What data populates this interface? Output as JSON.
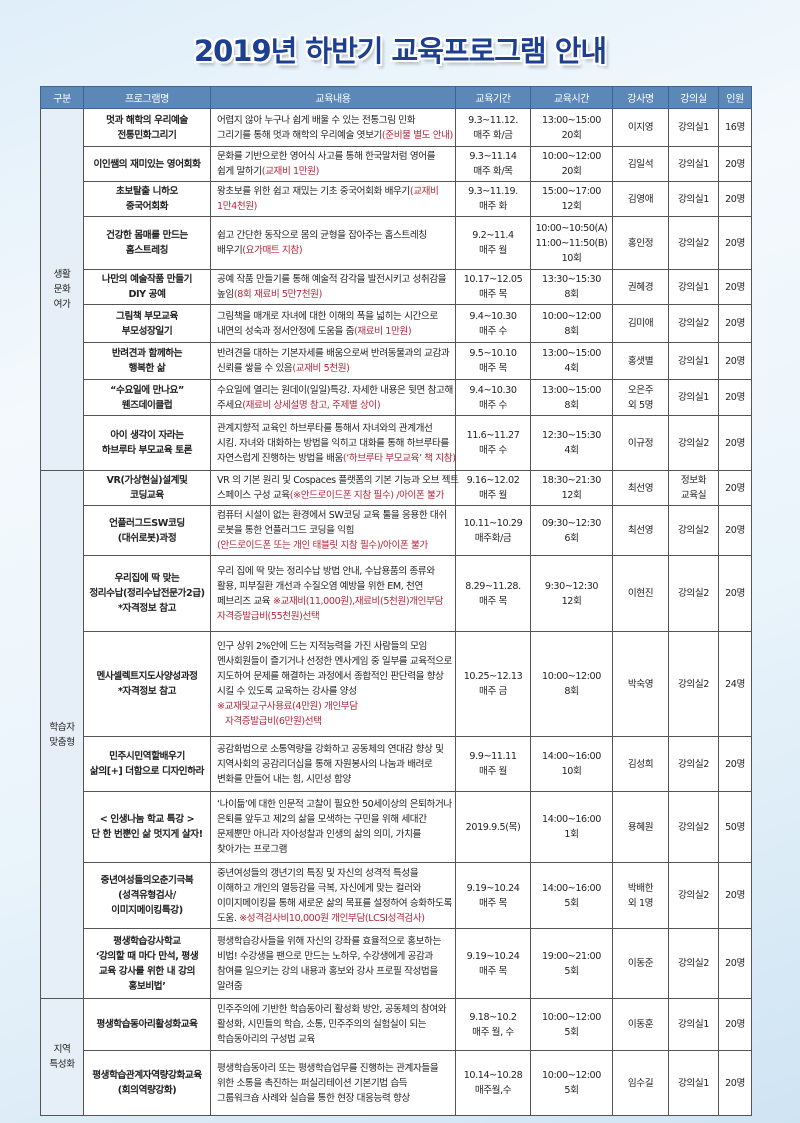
{
  "title": "2019년 하반기 교육프로그램 안내",
  "colors": {
    "title": "#1d3f8f",
    "header_bg": "#5c88b8",
    "note_red": "#b1283a"
  },
  "headers": [
    "구분",
    "프로그램명",
    "교육내용",
    "교육기간",
    "교육시간",
    "강사명",
    "강의실",
    "인원"
  ],
  "groups": [
    {
      "category": [
        "생활",
        "문화",
        "여가"
      ],
      "rows": [
        {
          "name": [
            "멋과 해학의 우리예술",
            "전통민화그리기"
          ],
          "content": [
            [
              "어렵지 않아 누구나 쉽게 배울 수 있는 전통그림 민화",
              ""
            ],
            [
              "그리기를 통해 멋과 해학의 우리예술 엿보기",
              "(준비물 별도 안내)"
            ]
          ],
          "period": [
            "9.3~11.12.",
            "매주 화/금"
          ],
          "time": [
            "13:00~15:00",
            "20회"
          ],
          "instructor": [
            "이지영"
          ],
          "room": [
            "강의실1"
          ],
          "capacity": "16명"
        },
        {
          "name": [
            "이인쌤의 재미있는 영어회화"
          ],
          "content": [
            [
              "문화를 기반으로한 영어식 사고를 통해 한국말처럼 영어를",
              ""
            ],
            [
              "쉽게 말하기",
              "(교재비 1만원)"
            ]
          ],
          "period": [
            "9.3~11.14",
            "매주 화/목"
          ],
          "time": [
            "10:00~12:00",
            "20회"
          ],
          "instructor": [
            "김일석"
          ],
          "room": [
            "강의실1"
          ],
          "capacity": "20명"
        },
        {
          "name": [
            "초보탈출 니하오",
            "중국어회화"
          ],
          "content": [
            [
              "왕초보를 위한 쉽고 재밌는 기초 중국어회화 배우기",
              "(교재비"
            ],
            [
              "",
              "1만4천원)"
            ]
          ],
          "period": [
            "9.3~11.19.",
            "매주 화"
          ],
          "time": [
            "15:00~17:00",
            "12회"
          ],
          "instructor": [
            "김영애"
          ],
          "room": [
            "강의실1"
          ],
          "capacity": "20명"
        },
        {
          "name": [
            "건강한 몸매를 만드는",
            "홈스트레칭"
          ],
          "content": [
            [
              "쉽고 간단한 동작으로 몸의 균형을 잡아주는 홈스트레칭",
              ""
            ],
            [
              "배우기",
              "(요가매트 지참)"
            ]
          ],
          "period": [
            "9.2~11.4",
            "매주 월"
          ],
          "time": [
            "10:00~10:50(A)",
            "11:00~11:50(B)",
            "10회"
          ],
          "instructor": [
            "홍인정"
          ],
          "room": [
            "강의실2"
          ],
          "capacity": "20명"
        },
        {
          "name": [
            "나만의 예술작품 만들기",
            "DIY 공예"
          ],
          "content": [
            [
              "공예 작품 만들기를 통해 예술적 감각을 발전시키고 성취감을",
              ""
            ],
            [
              "높임",
              "(8회 재료비 5만7천원)"
            ]
          ],
          "period": [
            "10.17~12.05",
            "매주 목"
          ],
          "time": [
            "13:30~15:30",
            "8회"
          ],
          "instructor": [
            "권혜경"
          ],
          "room": [
            "강의실1"
          ],
          "capacity": "20명"
        },
        {
          "name": [
            "그림책 부모교육",
            "부모성장일기"
          ],
          "content": [
            [
              "그림책을 매개로 자녀에 대한 이해의 폭을 넓히는 시간으로",
              ""
            ],
            [
              "내면의 성숙과 정서안정에 도움을 줌",
              "(재료비 1만원)"
            ]
          ],
          "period": [
            "9.4~10.30",
            "매주 수"
          ],
          "time": [
            "10:00~12:00",
            "8회"
          ],
          "instructor": [
            "김미애"
          ],
          "room": [
            "강의실2"
          ],
          "capacity": "20명"
        },
        {
          "name": [
            "반려견과 함께하는",
            "행복한 삶"
          ],
          "content": [
            [
              "반려견을 대하는 기본자세를 배움으로써 반려동물과의 교감과",
              ""
            ],
            [
              "신뢰를 쌓을 수 있음",
              "(교재비 5천원)"
            ]
          ],
          "period": [
            "9.5~10.10",
            "매주 목"
          ],
          "time": [
            "13:00~15:00",
            "4회"
          ],
          "instructor": [
            "홍샛별"
          ],
          "room": [
            "강의실1"
          ],
          "capacity": "20명"
        },
        {
          "name": [
            "“수요일에 만나요”",
            "웬즈데이클럽"
          ],
          "content": [
            [
              "수요일에 열리는 원데이(일일)특강. 자세한 내용은 뒷면 참고해",
              ""
            ],
            [
              "주세요",
              "(재료비 상세설명 참고, 주제별 상이)"
            ]
          ],
          "period": [
            "9.4~10.30",
            "매주 수"
          ],
          "time": [
            "13:00~15:00",
            "8회"
          ],
          "instructor": [
            "오은주",
            "외 5명"
          ],
          "room": [
            "강의실1"
          ],
          "capacity": "20명"
        },
        {
          "name": [
            "아이  생각이 자라는",
            "하브루타 부모교육 토론"
          ],
          "content": [
            [
              "관계지향적 교육인 하브루타를 통해서 자녀와의 관계개선",
              ""
            ],
            [
              "시킴. 자녀와 대화하는 방법을 익히고 대화를 통해 하브루타를",
              ""
            ],
            [
              "자연스럽게 진행하는 방법을 배움",
              "(‘하브루타 부모교육’ 책 지참)"
            ]
          ],
          "period": [
            "11.6~11.27",
            "매주 수"
          ],
          "time": [
            "12:30~15:30",
            "4회"
          ],
          "instructor": [
            "이규정"
          ],
          "room": [
            "강의실2"
          ],
          "capacity": "20명"
        }
      ]
    },
    {
      "category": [
        "학습자",
        "맞춤형"
      ],
      "rows": [
        {
          "name": [
            "VR(가상현실)설계및",
            "코딩교육"
          ],
          "content": [
            [
              "VR 의 기본 원리 및 Cospaces 플랫폼의 기본 기능과 오브 젝트",
              ""
            ],
            [
              "스페이스 구성 교육",
              "(※안드로이드폰 지참 필수) /아이폰 불가"
            ]
          ],
          "period": [
            "9.16~12.02",
            "매주 월"
          ],
          "time": [
            "18:30~21:30",
            "12회"
          ],
          "instructor": [
            "최선영"
          ],
          "room": [
            "정보화",
            "교육실"
          ],
          "capacity": "20명"
        },
        {
          "name": [
            "언플러그드SW코딩",
            "(대쉬로봇)과정"
          ],
          "content": [
            [
              "컴퓨터 시설이 없는 환경에서 SW코딩 교육 툴을 응용한 대쉬",
              ""
            ],
            [
              "로봇을 통한 언플러그드 코딩을 익힘",
              ""
            ],
            [
              "",
              "(안드로이드폰 또는 개인 태블릿 지참 필수)/아이폰 불가"
            ]
          ],
          "period": [
            "10.11~10.29",
            "매주화/금"
          ],
          "time": [
            "09:30~12:30",
            "6회"
          ],
          "instructor": [
            "최선영"
          ],
          "room": [
            "강의실2"
          ],
          "capacity": "20명"
        },
        {
          "name": [
            "우리집에 딱 맞는",
            "정리수납(정리수납전문가2급)",
            "*자격정보 참고"
          ],
          "content": [
            [
              "우리 집에 딱 맞는 정리수납 방법 안내, 수납용품의 종류와",
              ""
            ],
            [
              "활용, 피부질환 개선과 수질오염 예방을 위한 EM, 천연",
              ""
            ],
            [
              "페브리즈 교육 ",
              "※교재비(11,000원),재료비(5천원)개인부담"
            ],
            [
              "",
              "자격증발급비(55천원)선택"
            ]
          ],
          "period": [
            "8.29~11.28.",
            "매주 목"
          ],
          "time": [
            "9:30~12:30",
            "12회"
          ],
          "instructor": [
            "이현진"
          ],
          "room": [
            "강의실2"
          ],
          "capacity": "20명"
        },
        {
          "name": [
            "멘사셀렉트지도사양성과정",
            "*자격정보 참고"
          ],
          "content": [
            [
              "인구 상위 2%안에 드는 지적능력을 가진 사람들의 모임",
              ""
            ],
            [
              "멘사회원들이 즐기거나 선정한 멘사게임 중 일부를 교육적으로",
              ""
            ],
            [
              "지도하여 문제를 해결하는 과정에서 종합적인 판단력을 향상",
              ""
            ],
            [
              "시킬 수 있도록 교육하는 강사를 양성",
              ""
            ],
            [
              "",
              "※교재및교구사용료(4만원) 개인부담"
            ],
            [
              "",
              "   자격증발급비(6만원)선택"
            ]
          ],
          "period": [
            "10.25~12.13",
            "매주 금"
          ],
          "time": [
            "10:00~12:00",
            "8회"
          ],
          "instructor": [
            "박숙영"
          ],
          "room": [
            "강의실2"
          ],
          "capacity": "24명"
        },
        {
          "name": [
            "민주시민역할배우기",
            "삶의[+] 더함으로 디자인하라"
          ],
          "content": [
            [
              "공감화법으로 소통역량을 강화하고 공동체의 연대감 향상 및",
              ""
            ],
            [
              "지역사회의 공감리더십을 통해 자원봉사의 나눔과 배려로",
              ""
            ],
            [
              "변화를 만들어 내는 힘, 시민성 함양",
              ""
            ]
          ],
          "period": [
            "9.9~11.11",
            "매주 월"
          ],
          "time": [
            "14:00~16:00",
            "10회"
          ],
          "instructor": [
            "김성희"
          ],
          "room": [
            "강의실2"
          ],
          "capacity": "20명"
        },
        {
          "name": [
            "< 인생나눔 학교 특강 >",
            "단 한 번뿐인 삶 멋지게 살자!"
          ],
          "content": [
            [
              "‘나이듦’에 대한 인문적 고찰이 필요한 50세이상의 은퇴하거나",
              ""
            ],
            [
              "은퇴를 앞두고 제2의 삶을 모색하는 구민을 위해 세대간",
              ""
            ],
            [
              "문제뿐만 아니라 자아성찰과 인생의 삶의 의미, 가치를",
              ""
            ],
            [
              "찾아가는 프로그램",
              ""
            ]
          ],
          "period": [
            "2019.9.5(목)"
          ],
          "time": [
            "14:00~16:00",
            "1회"
          ],
          "instructor": [
            "용혜원"
          ],
          "room": [
            "강의실2"
          ],
          "capacity": "50명"
        },
        {
          "name": [
            "중년여성들의오춘기극복",
            "(성격유형검사/",
            "이미지메이킹특강)"
          ],
          "content": [
            [
              "중년여성들의 갱년기의 특징 및 자신의 성격적 특성을",
              ""
            ],
            [
              "이해하고 개인의 열등감을 극복, 자신에게 맞는 컬러와",
              ""
            ],
            [
              "이미지메이킹을 통해 새로운 삶의 목표를 설정하여 승화하도록",
              ""
            ],
            [
              "도움. ",
              "※성격검사비10,000원 개인부담(LCSI성격검사)"
            ]
          ],
          "period": [
            "9.19~10.24",
            "매주 목"
          ],
          "time": [
            "14:00~16:00",
            "5회"
          ],
          "instructor": [
            "박배한",
            "외 1명"
          ],
          "room": [
            "강의실2"
          ],
          "capacity": "20명"
        },
        {
          "name": [
            "평생학습강사학교",
            "‘강의할 때 마다 만석, 평생",
            "교육 강사를 위한 내 강의",
            "홍보비법’"
          ],
          "content": [
            [
              "평생학습강사들을 위해 자신의 강좌를 효율적으로 홍보하는",
              ""
            ],
            [
              "비법! 수강생을 팬으로 만드는 노하우, 수강생에게 공감과",
              ""
            ],
            [
              "참여를 일으키는 강의 내용과 홍보와 강사 프로필 작성법을",
              ""
            ],
            [
              "알려줌",
              ""
            ]
          ],
          "period": [
            "9.19~10.24",
            "매주 목"
          ],
          "time": [
            "19:00~21:00",
            "5회"
          ],
          "instructor": [
            "이동준"
          ],
          "room": [
            "강의실2"
          ],
          "capacity": "20명"
        }
      ]
    },
    {
      "category": [
        "지역",
        "특성화"
      ],
      "rows": [
        {
          "name": [
            "평생학습동아리활성화교육"
          ],
          "content": [
            [
              "민주주의에 기반한 학습동아리 활성화 방안, 공동체의 참여와",
              ""
            ],
            [
              "활성화, 시민들의 학습, 소통, 민주주의의 실험실이 되는",
              ""
            ],
            [
              "학습동아리의 구성법 교육",
              ""
            ]
          ],
          "period": [
            "9.18~10.2",
            "매주 월, 수"
          ],
          "time": [
            "10:00~12:00",
            "5회"
          ],
          "instructor": [
            "이동훈"
          ],
          "room": [
            "강의실1"
          ],
          "capacity": "20명"
        },
        {
          "name": [
            "평생학습관계자역량강화교육",
            "(회의역량강화)"
          ],
          "content": [
            [
              "평생학습동아리 또는 평생학습업무를 진행하는 관계자들을",
              ""
            ],
            [
              "위한 소통을 촉진하는 퍼실리테이션 기본기법 습득",
              ""
            ],
            [
              "그룹워크숍 사례와 실습을 통한 현장 대응능력 향상",
              ""
            ]
          ],
          "period": [
            "10.14~10.28",
            "매주월,수"
          ],
          "time": [
            "10:00~12:00",
            "5회"
          ],
          "instructor": [
            "임수길"
          ],
          "room": [
            "강의실1"
          ],
          "capacity": "20명"
        }
      ]
    }
  ]
}
